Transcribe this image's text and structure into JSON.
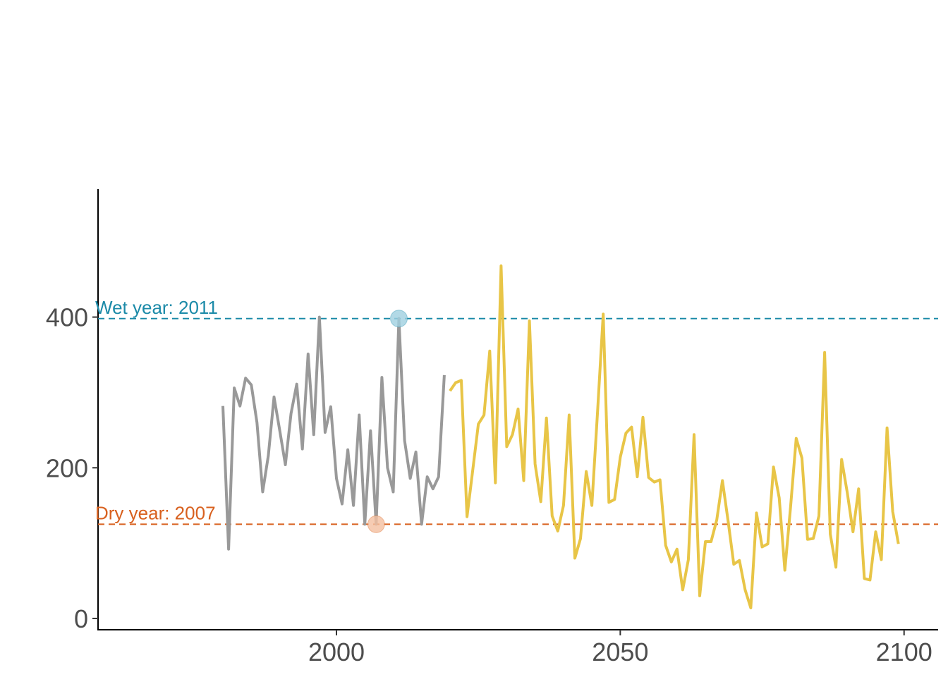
{
  "chart_data": {
    "type": "line",
    "title": "",
    "xlabel": "",
    "ylabel": "",
    "xlim": [
      1958,
      2106
    ],
    "ylim": [
      -15,
      570
    ],
    "x_ticks": [
      2000,
      2050,
      2100
    ],
    "y_ticks": [
      0,
      200,
      400
    ],
    "grid": false,
    "legend": "none",
    "series": [
      {
        "color": "#999999",
        "x": [
          1980,
          1981,
          1982,
          1983,
          1984,
          1985,
          1986,
          1987,
          1988,
          1989,
          1990,
          1991,
          1992,
          1993,
          1994,
          1995,
          1996,
          1997,
          1998,
          1999,
          2000,
          2001,
          2002,
          2003,
          2004,
          2005,
          2006,
          2007,
          2008,
          2009,
          2010,
          2011,
          2012,
          2013,
          2014,
          2015,
          2016,
          2017,
          2018,
          2019
        ],
        "values": [
          282,
          92,
          306,
          282,
          319,
          310,
          260,
          168,
          216,
          294,
          250,
          204,
          272,
          311,
          225,
          351,
          244,
          400,
          247,
          281,
          186,
          152,
          224,
          150,
          270,
          125,
          249,
          125,
          320,
          200,
          168,
          398,
          236,
          186,
          221,
          125,
          188,
          172,
          188,
          323
        ]
      },
      {
        "color": "#E8C547",
        "x": [
          2020,
          2021,
          2022,
          2023,
          2024,
          2025,
          2026,
          2027,
          2028,
          2029,
          2030,
          2031,
          2032,
          2033,
          2034,
          2035,
          2036,
          2037,
          2038,
          2039,
          2040,
          2041,
          2042,
          2043,
          2044,
          2045,
          2046,
          2047,
          2048,
          2049,
          2050,
          2051,
          2052,
          2053,
          2054,
          2055,
          2056,
          2057,
          2058,
          2059,
          2060,
          2061,
          2062,
          2063,
          2064,
          2065,
          2066,
          2067,
          2068,
          2069,
          2070,
          2071,
          2072,
          2073,
          2074,
          2075,
          2076,
          2077,
          2078,
          2079,
          2080,
          2081,
          2082,
          2083,
          2084,
          2085,
          2086,
          2087,
          2088,
          2089,
          2090,
          2091,
          2092,
          2093,
          2094,
          2095,
          2096,
          2097,
          2098,
          2099
        ],
        "values": [
          302,
          313,
          316,
          135,
          196,
          258,
          270,
          355,
          180,
          468,
          228,
          244,
          278,
          183,
          395,
          205,
          155,
          266,
          136,
          116,
          150,
          270,
          80,
          106,
          195,
          150,
          275,
          404,
          154,
          158,
          214,
          246,
          254,
          188,
          267,
          187,
          181,
          184,
          97,
          75,
          92,
          38,
          78,
          244,
          30,
          102,
          102,
          131,
          183,
          129,
          72,
          77,
          38,
          14,
          140,
          95,
          99,
          201,
          160,
          64,
          148,
          239,
          213,
          105,
          106,
          136,
          353,
          112,
          68,
          211,
          167,
          115,
          172,
          53,
          51,
          115,
          78,
          253,
          142,
          99
        ]
      }
    ],
    "reference_lines": [
      {
        "label": "Wet year: 2011",
        "y": 398,
        "year": 2011,
        "color": "#1B8AA8",
        "point_color": "#9FD0E0"
      },
      {
        "label": "Dry year: 2007",
        "y": 125,
        "year": 2007,
        "color": "#D8601E",
        "point_color": "#F4BFA0"
      }
    ]
  }
}
